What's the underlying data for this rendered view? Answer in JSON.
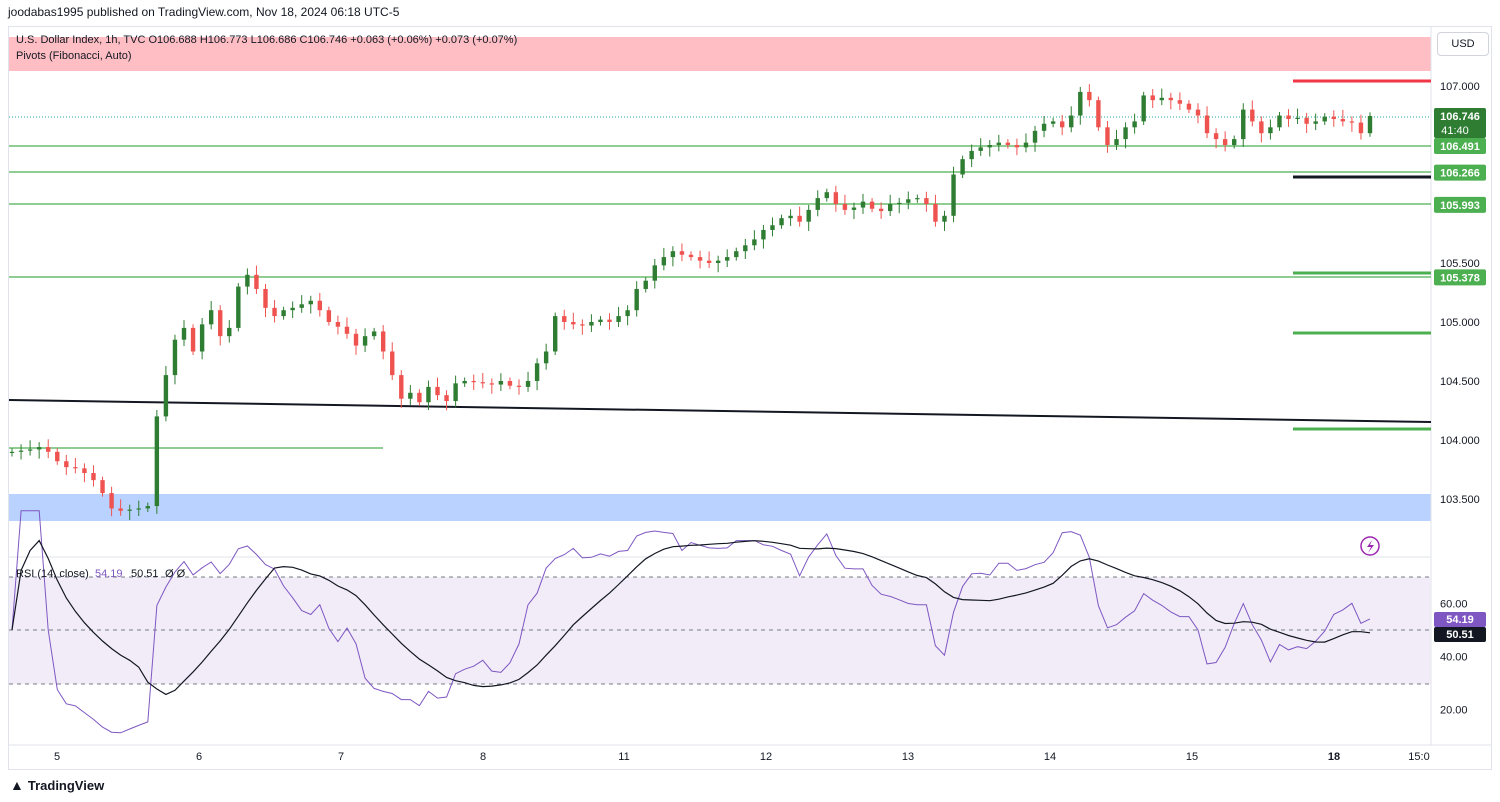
{
  "header": {
    "publish_line": "joodabas1995 published on TradingView.com, Nov 18, 2024 06:18 UTC-5"
  },
  "legend": {
    "symbol_line": "U.S. Dollar Index, 1h, TVC  O106.688  H106.773  L106.686  C106.746  +0.063 (+0.06%)  +0.073 (+0.07%)",
    "indicator": "Pivots (Fibonacci, Auto)",
    "rsi_title": "RSI (14, close)",
    "rsi_value": "54.19",
    "rsi_ma": "50.51",
    "rsi_extra": "Ø  Ø"
  },
  "currency_button": "USD",
  "price_labels": {
    "current": "106.746",
    "countdown": "41:40",
    "levels": [
      "106.491",
      "106.266",
      "105.993",
      "105.378"
    ]
  },
  "price_axis_ticks": [
    "107.000",
    "106.500",
    "106.000",
    "105.500",
    "105.000",
    "104.500",
    "104.000",
    "103.500"
  ],
  "rsi_axis_ticks": [
    "60.00",
    "40.00",
    "20.00"
  ],
  "rsi_labels": [
    "54.19",
    "50.51"
  ],
  "time_axis_ticks": [
    "5",
    "6",
    "7",
    "8",
    "11",
    "12",
    "13",
    "14",
    "15",
    "18",
    "15:0"
  ],
  "footer": {
    "brand": "TradingView"
  },
  "colors": {
    "up": "#26a69a",
    "up_candle": "#2e7d32",
    "down": "#ef5350",
    "pivot_green": "#4caf50",
    "pivot_red": "#f23645",
    "rsi_line": "#7e57c2",
    "rsi_band": "#ede7f6",
    "resistance_zone": "#ffb3ba",
    "support_zone": "#b3cdff"
  },
  "chart_data": {
    "type": "candlestick",
    "title": "U.S. Dollar Index, 1h, TVC",
    "ylim": [
      103.25,
      107.2
    ],
    "current_price": 106.746,
    "zones": [
      {
        "name": "resistance",
        "from": 107.2,
        "to": 107.0
      },
      {
        "name": "support",
        "from": 103.55,
        "to": 103.3
      }
    ],
    "pivot_levels": [
      {
        "value": 106.491,
        "label": "106.491"
      },
      {
        "value": 106.266,
        "label": "106.266"
      },
      {
        "value": 105.993,
        "label": "105.993"
      },
      {
        "value": 105.378,
        "label": "105.378"
      }
    ],
    "trendline": {
      "from": 104.33,
      "to": 104.15
    },
    "closes": [
      103.9,
      103.91,
      103.92,
      103.94,
      103.9,
      103.82,
      103.77,
      103.76,
      103.72,
      103.66,
      103.55,
      103.42,
      103.4,
      103.41,
      103.42,
      103.44,
      104.2,
      104.55,
      104.85,
      104.95,
      104.75,
      104.98,
      105.1,
      104.88,
      104.95,
      105.3,
      105.4,
      105.28,
      105.12,
      105.05,
      105.1,
      105.12,
      105.15,
      105.18,
      105.1,
      105.0,
      104.96,
      104.9,
      104.8,
      104.88,
      104.92,
      104.75,
      104.55,
      104.35,
      104.4,
      104.32,
      104.45,
      104.38,
      104.33,
      104.48,
      104.5,
      104.49,
      104.48,
      104.47,
      104.5,
      104.46,
      104.45,
      104.5,
      104.65,
      104.75,
      105.05,
      105.0,
      104.98,
      104.97,
      105.0,
      105.02,
      105.0,
      105.05,
      105.1,
      105.28,
      105.35,
      105.48,
      105.55,
      105.6,
      105.57,
      105.55,
      105.52,
      105.5,
      105.52,
      105.55,
      105.6,
      105.65,
      105.7,
      105.78,
      105.82,
      105.88,
      105.9,
      105.85,
      105.95,
      106.05,
      106.1,
      106.0,
      105.95,
      105.97,
      106.02,
      105.96,
      105.94,
      106.0,
      106.01,
      106.04,
      106.05,
      106.0,
      105.85,
      105.9,
      106.25,
      106.38,
      106.45,
      106.48,
      106.5,
      106.52,
      106.5,
      106.48,
      106.52,
      106.62,
      106.68,
      106.7,
      106.65,
      106.75,
      106.95,
      106.88,
      106.65,
      106.5,
      106.55,
      106.65,
      106.7,
      106.92,
      106.88,
      106.9,
      106.88,
      106.85,
      106.8,
      106.75,
      106.6,
      106.55,
      106.5,
      106.55,
      106.8,
      106.7,
      106.6,
      106.65,
      106.75,
      106.72,
      106.73,
      106.68,
      106.7,
      106.74,
      106.72,
      106.7,
      106.69,
      106.6,
      106.746
    ],
    "rsi": {
      "current": 54.19,
      "ma": 50.51,
      "upper_band": 70,
      "middle": 50,
      "lower_band": 30
    }
  }
}
